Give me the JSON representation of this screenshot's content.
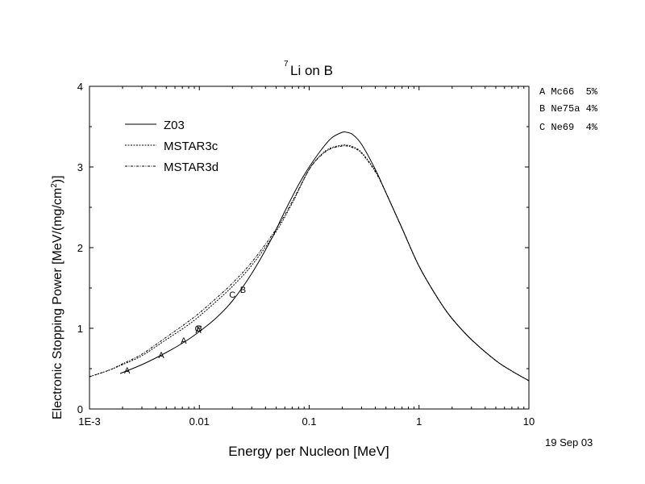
{
  "chart_data": {
    "type": "line",
    "title": {
      "sup": "7",
      "main": "Li on B"
    },
    "xlabel": "Energy per Nucleon [MeV]",
    "ylabel": {
      "pre": "Electronic Stopping Power [MeV/(mg/cm",
      "sup": "2",
      "post": ")]"
    },
    "x_scale": "log",
    "xlim": [
      0.001,
      10
    ],
    "ylim": [
      0,
      4
    ],
    "x_ticks": [
      {
        "value": 0.001,
        "label": "1E-3"
      },
      {
        "value": 0.01,
        "label": "0.01"
      },
      {
        "value": 0.1,
        "label": "0.1"
      },
      {
        "value": 1,
        "label": "1"
      },
      {
        "value": 10,
        "label": "10"
      }
    ],
    "y_ticks": [
      {
        "value": 0,
        "label": "0"
      },
      {
        "value": 1,
        "label": "1"
      },
      {
        "value": 2,
        "label": "2"
      },
      {
        "value": 3,
        "label": "3"
      },
      {
        "value": 4,
        "label": "4"
      }
    ],
    "legend_placement": "top-left",
    "series": [
      {
        "name": "Z03",
        "style": "solid",
        "x": [
          0.0019,
          0.003,
          0.005,
          0.0075,
          0.01,
          0.014,
          0.02,
          0.03,
          0.045,
          0.06,
          0.08,
          0.1,
          0.13,
          0.16,
          0.2,
          0.22,
          0.25,
          0.3,
          0.4,
          0.5,
          0.7,
          1,
          1.5,
          2,
          3,
          5,
          7,
          10
        ],
        "y": [
          0.44,
          0.55,
          0.7,
          0.84,
          0.96,
          1.12,
          1.34,
          1.68,
          2.1,
          2.45,
          2.78,
          3.0,
          3.22,
          3.36,
          3.43,
          3.43,
          3.4,
          3.28,
          2.97,
          2.68,
          2.24,
          1.77,
          1.36,
          1.12,
          0.86,
          0.6,
          0.47,
          0.35
        ]
      },
      {
        "name": "MSTAR3c",
        "style": "dashed",
        "x": [
          0.001,
          0.0015,
          0.002,
          0.003,
          0.005,
          0.0075,
          0.01,
          0.015,
          0.02,
          0.03,
          0.05,
          0.07,
          0.1,
          0.13,
          0.16,
          0.2,
          0.22,
          0.25,
          0.3,
          0.4,
          0.5,
          0.7,
          1,
          1.5,
          2,
          3,
          5,
          7,
          10
        ],
        "y": [
          0.4,
          0.48,
          0.55,
          0.66,
          0.86,
          1.02,
          1.15,
          1.36,
          1.52,
          1.78,
          2.2,
          2.55,
          2.97,
          3.16,
          3.24,
          3.27,
          3.27,
          3.25,
          3.18,
          2.95,
          2.68,
          2.24,
          1.77,
          1.36,
          1.12,
          0.86,
          0.6,
          0.47,
          0.35
        ]
      },
      {
        "name": "MSTAR3d",
        "style": "dash-dot",
        "x": [
          0.001,
          0.0015,
          0.002,
          0.003,
          0.005,
          0.0075,
          0.01,
          0.015,
          0.02,
          0.03,
          0.05,
          0.07,
          0.1,
          0.13,
          0.16,
          0.2,
          0.22,
          0.25,
          0.3,
          0.4,
          0.5,
          0.7,
          1,
          1.5,
          2,
          3,
          5,
          7,
          10
        ],
        "y": [
          0.4,
          0.48,
          0.56,
          0.68,
          0.89,
          1.06,
          1.19,
          1.4,
          1.56,
          1.82,
          2.23,
          2.57,
          2.97,
          3.15,
          3.23,
          3.26,
          3.26,
          3.24,
          3.17,
          2.94,
          2.68,
          2.24,
          1.77,
          1.36,
          1.12,
          0.86,
          0.6,
          0.47,
          0.35
        ]
      }
    ],
    "data_markers": [
      {
        "label": "A",
        "x": 0.0022,
        "y": 0.48
      },
      {
        "label": "A",
        "x": 0.0045,
        "y": 0.67
      },
      {
        "label": "A",
        "x": 0.0072,
        "y": 0.85
      },
      {
        "label": "A",
        "x": 0.0098,
        "y": 0.98
      },
      {
        "label": "C",
        "x": 0.0097,
        "y": 1.0
      },
      {
        "label": "B",
        "x": 0.01,
        "y": 1.0
      },
      {
        "label": "C",
        "x": 0.02,
        "y": 1.42
      },
      {
        "label": "B",
        "x": 0.025,
        "y": 1.48
      }
    ],
    "reference_legend": [
      {
        "text": "A Mc66  5%"
      },
      {
        "text": "B Ne75a 4%"
      },
      {
        "text": "C Ne69  4%"
      }
    ],
    "date_stamp": "19 Sep 03"
  }
}
